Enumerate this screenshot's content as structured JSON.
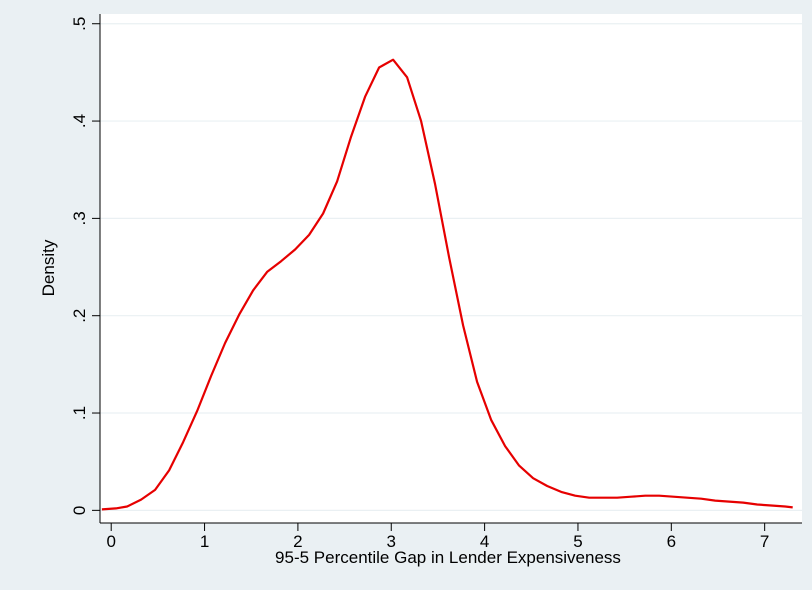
{
  "chart_data": {
    "type": "line",
    "title": "",
    "xlabel": "95-5 Percentile Gap in Lender Expensiveness",
    "ylabel": "Density",
    "xlim": [
      -0.12,
      7.4
    ],
    "ylim": [
      -0.013,
      0.51
    ],
    "xticks": [
      0,
      1,
      2,
      3,
      4,
      5,
      6,
      7
    ],
    "xtick_labels": [
      "0",
      "1",
      "2",
      "3",
      "4",
      "5",
      "6",
      "7"
    ],
    "yticks": [
      0,
      0.1,
      0.2,
      0.3,
      0.4,
      0.5
    ],
    "ytick_labels": [
      "0",
      ".1",
      ".2",
      ".3",
      ".4",
      ".5"
    ],
    "grid": true,
    "legend": "none",
    "colors": {
      "line": "#e60000",
      "plot_bg": "#ffffff",
      "outer_bg": "#eaf0f3",
      "grid": "#eaf0f3"
    },
    "series": [
      {
        "x": [
          -0.1,
          0.05,
          0.17,
          0.32,
          0.47,
          0.62,
          0.77,
          0.92,
          1.07,
          1.22,
          1.37,
          1.52,
          1.67,
          1.82,
          1.97,
          2.12,
          2.27,
          2.42,
          2.57,
          2.72,
          2.87,
          3.02,
          3.17,
          3.32,
          3.47,
          3.62,
          3.77,
          3.92,
          4.07,
          4.22,
          4.37,
          4.52,
          4.67,
          4.82,
          4.97,
          5.12,
          5.27,
          5.42,
          5.57,
          5.72,
          5.87,
          6.02,
          6.17,
          6.32,
          6.47,
          6.62,
          6.77,
          6.92,
          7.07,
          7.22,
          7.3
        ],
        "y": [
          0.001,
          0.002,
          0.004,
          0.011,
          0.021,
          0.041,
          0.07,
          0.102,
          0.138,
          0.172,
          0.201,
          0.226,
          0.245,
          0.256,
          0.268,
          0.283,
          0.305,
          0.338,
          0.384,
          0.425,
          0.455,
          0.463,
          0.445,
          0.4,
          0.335,
          0.26,
          0.19,
          0.132,
          0.093,
          0.066,
          0.046,
          0.033,
          0.025,
          0.019,
          0.015,
          0.013,
          0.013,
          0.013,
          0.014,
          0.015,
          0.015,
          0.014,
          0.013,
          0.012,
          0.01,
          0.009,
          0.008,
          0.006,
          0.005,
          0.004,
          0.003
        ]
      }
    ]
  }
}
